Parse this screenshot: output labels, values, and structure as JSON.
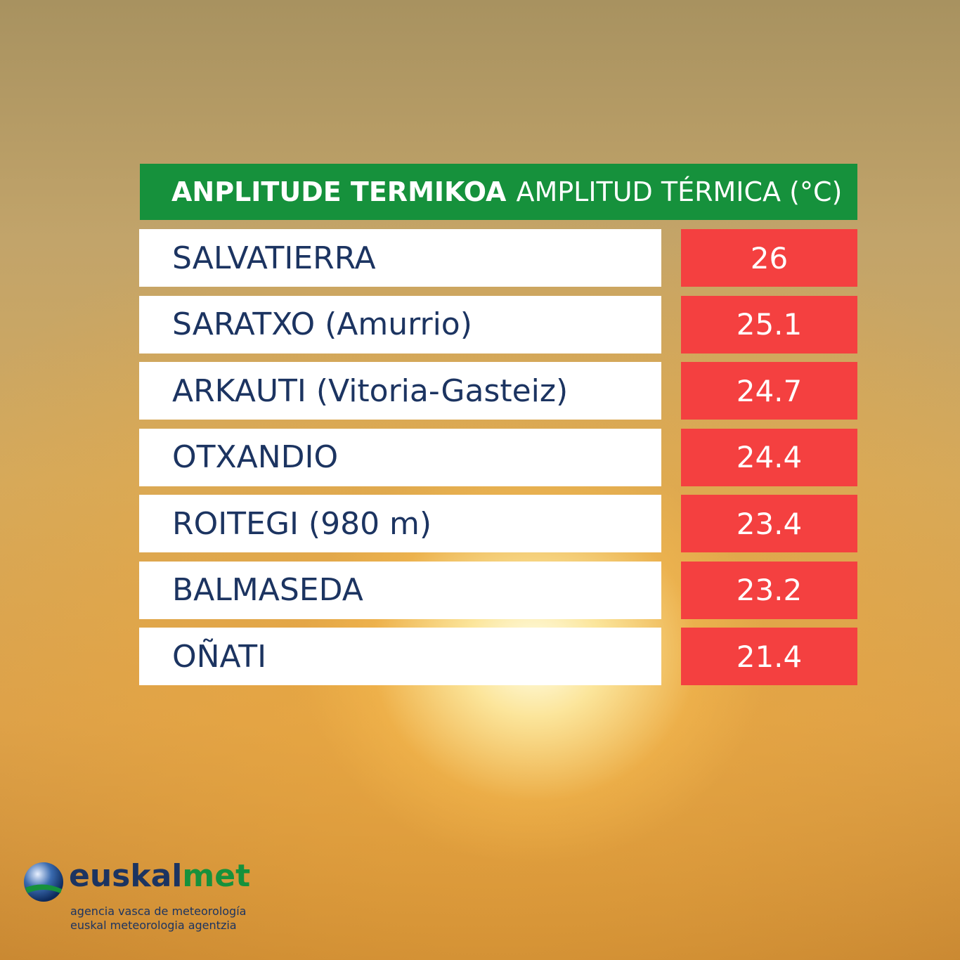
{
  "header": {
    "title_eu": "ANPLITUDE TERMIKOA",
    "title_es": "AMPLITUD TÉRMICA (°C)"
  },
  "table": {
    "rows": [
      [
        "SALVATIERRA",
        26
      ],
      [
        "SARATXO (Amurrio)",
        25.1
      ],
      [
        "ARKAUTI (Vitoria-Gasteiz)",
        24.7
      ],
      [
        "OTXANDIO",
        24.4
      ],
      [
        "ROITEGI (980 m)",
        23.4
      ],
      [
        "BALMASEDA",
        23.2
      ],
      [
        "OÑATI",
        21.4
      ]
    ]
  },
  "logo": {
    "name_a": "euskal",
    "name_b": "met",
    "line1": "agencia vasca de meteorología",
    "line2": "euskal meteorologia agentzia"
  }
}
